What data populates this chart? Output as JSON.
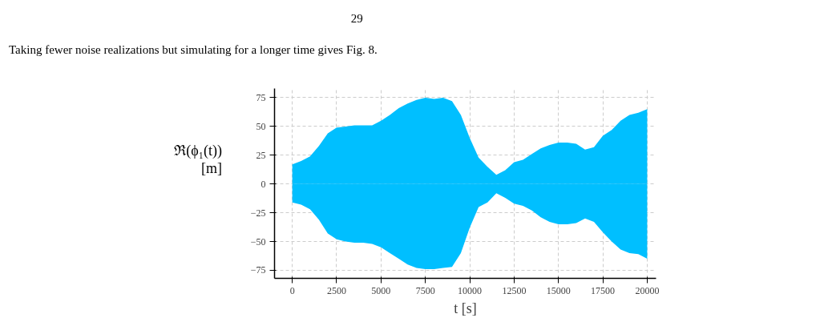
{
  "chart_data": {
    "type": "area",
    "xlabel": "t [s]",
    "ylabel": "ℜ(ϕ₁(t)) [m]",
    "annotations": [
      "29",
      "Taking fewer noise realizations but simulating for a longer time gives Fig. 8."
    ],
    "x": [
      0,
      500,
      1000,
      1500,
      2000,
      2500,
      3000,
      3500,
      4000,
      4500,
      5000,
      5500,
      6000,
      6500,
      7000,
      7500,
      8000,
      8500,
      9000,
      9500,
      10000,
      10500,
      11000,
      11500,
      12000,
      12500,
      13000,
      13500,
      14000,
      14500,
      15000,
      15500,
      16000,
      16500,
      17000,
      17500,
      18000,
      18500,
      19000,
      19500,
      20000
    ],
    "series": [
      {
        "color": "#00bfff",
        "values": [
          17,
          20,
          24,
          33,
          44,
          49,
          50,
          51,
          51,
          51,
          55,
          60,
          66,
          70,
          73,
          75,
          74,
          75,
          72,
          60,
          40,
          23,
          15,
          8,
          12,
          19,
          21,
          26,
          31,
          34,
          36,
          36,
          35,
          30,
          32,
          42,
          47,
          55,
          60,
          62,
          65
        ]
      },
      {
        "color": "#00bfff",
        "values": [
          -16,
          -18,
          -22,
          -31,
          -43,
          -48,
          -50,
          -51,
          -51,
          -52,
          -55,
          -60,
          -65,
          -70,
          -73,
          -74,
          -74,
          -73,
          -72,
          -60,
          -38,
          -20,
          -16,
          -8,
          -12,
          -17,
          -19,
          -23,
          -29,
          -33,
          -35,
          -35,
          -34,
          -30,
          -33,
          -42,
          -50,
          -57,
          -60,
          -61,
          -65
        ]
      }
    ],
    "xlim": [
      -1000,
      20500
    ],
    "ylim": [
      -82,
      83
    ],
    "xticks": [
      0,
      2500,
      5000,
      7500,
      10000,
      12500,
      15000,
      17500,
      20000
    ],
    "yticks": [
      -75,
      -50,
      -25,
      0,
      25,
      50,
      75
    ],
    "grid": true
  }
}
